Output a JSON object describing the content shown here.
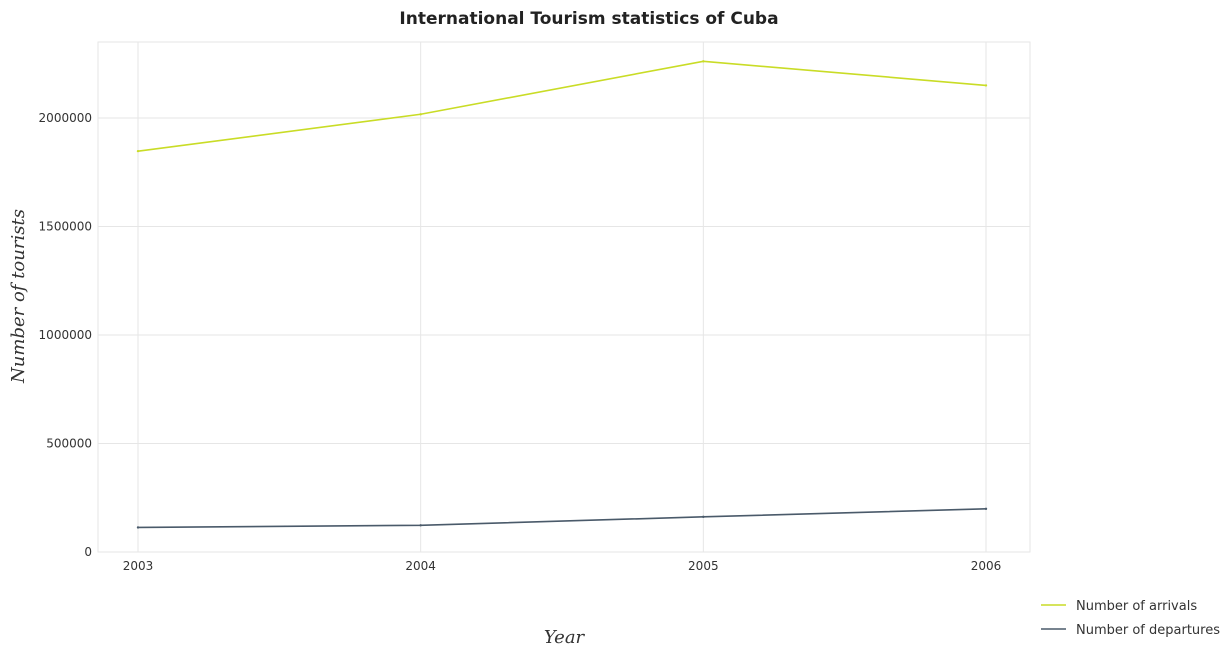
{
  "chart_data": {
    "type": "line",
    "title": "International Tourism statistics of Cuba",
    "xlabel": "Year",
    "ylabel": "Number of tourists",
    "categories": [
      "2003",
      "2004",
      "2005",
      "2006"
    ],
    "series": [
      {
        "name": "Number of arrivals",
        "values": [
          1847000,
          2017000,
          2261000,
          2150000
        ],
        "color": "#c9dc26"
      },
      {
        "name": "Number of departures",
        "values": [
          113000,
          123000,
          162000,
          199000
        ],
        "color": "#4a5a6a"
      }
    ],
    "ylim": [
      0,
      2350000
    ],
    "yticks": [
      0,
      500000,
      1000000,
      1500000,
      2000000
    ],
    "ytick_labels": [
      "0",
      "500000",
      "1000000",
      "1500000",
      "2000000"
    ],
    "grid": true,
    "legend_position": "bottom-right"
  }
}
